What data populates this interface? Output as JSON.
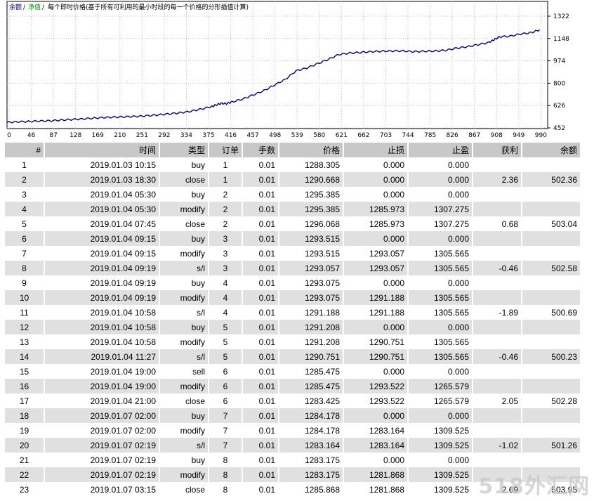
{
  "chart": {
    "legend": {
      "balance_label": "余额",
      "equity_label": "净值",
      "note": "每个即时价格(基于所有可利用的最小时段的每一个价格的分形插值计算)"
    },
    "colors": {
      "balance": "#00008b",
      "equity": "#00a000",
      "grid": "#c0c0c0",
      "axis": "#000000"
    },
    "chart_data": {
      "type": "line",
      "series": [
        {
          "name": "余额",
          "x": [
            0,
            20,
            40,
            60,
            80,
            100,
            120,
            140,
            160,
            180,
            200,
            220,
            240,
            260,
            280,
            300,
            320,
            340,
            360,
            380,
            390,
            400,
            410,
            420,
            440,
            460,
            480,
            500,
            520,
            540,
            560,
            580,
            600,
            620,
            640,
            660,
            680,
            700,
            720,
            740,
            760,
            780,
            800,
            820,
            840,
            860,
            880,
            900,
            910,
            920,
            940,
            960,
            980,
            995
          ],
          "y": [
            496,
            500,
            502,
            505,
            507,
            512,
            516,
            520,
            525,
            530,
            533,
            535,
            538,
            542,
            548,
            555,
            562,
            572,
            588,
            605,
            618,
            630,
            628,
            640,
            660,
            690,
            720,
            760,
            800,
            860,
            880,
            910,
            940,
            975,
            985,
            990,
            995,
            998,
            1000,
            1000,
            995,
            998,
            1000,
            1005,
            1020,
            1030,
            1045,
            1060,
            1080,
            1100,
            1105,
            1120,
            1130,
            1150
          ]
        }
      ],
      "x_ticks": [
        "0",
        "46",
        "87",
        "128",
        "169",
        "210",
        "251",
        "292",
        "334",
        "375",
        "416",
        "457",
        "498",
        "539",
        "580",
        "621",
        "662",
        "703",
        "744",
        "785",
        "826",
        "867",
        "908",
        "949",
        "990"
      ],
      "y_ticks": [
        "1322",
        "1148",
        "974",
        "800",
        "626",
        "452"
      ],
      "xlim": [
        0,
        1010
      ],
      "ylim": [
        452,
        1350
      ]
    }
  },
  "table": {
    "headers": [
      "#",
      "时间",
      "类型",
      "订单",
      "手数",
      "价格",
      "止损",
      "止盈",
      "获利",
      "余额"
    ],
    "rows": [
      [
        "1",
        "2019.01.03 10:15",
        "buy",
        "1",
        "0.01",
        "1288.305",
        "0.000",
        "0.000",
        "",
        ""
      ],
      [
        "2",
        "2019.01.03 18:30",
        "close",
        "1",
        "0.01",
        "1290.668",
        "0.000",
        "0.000",
        "2.36",
        "502.36"
      ],
      [
        "3",
        "2019.01.04 05:30",
        "buy",
        "2",
        "0.01",
        "1295.385",
        "0.000",
        "0.000",
        "",
        ""
      ],
      [
        "4",
        "2019.01.04 05:30",
        "modify",
        "2",
        "0.01",
        "1295.385",
        "1285.973",
        "1307.275",
        "",
        ""
      ],
      [
        "5",
        "2019.01.04 07:45",
        "close",
        "2",
        "0.01",
        "1296.068",
        "1285.973",
        "1307.275",
        "0.68",
        "503.04"
      ],
      [
        "6",
        "2019.01.04 09:15",
        "buy",
        "3",
        "0.01",
        "1293.515",
        "0.000",
        "0.000",
        "",
        ""
      ],
      [
        "7",
        "2019.01.04 09:15",
        "modify",
        "3",
        "0.01",
        "1293.515",
        "1293.057",
        "1305.565",
        "",
        ""
      ],
      [
        "8",
        "2019.01.04 09:19",
        "s/l",
        "3",
        "0.01",
        "1293.057",
        "1293.057",
        "1305.565",
        "-0.46",
        "502.58"
      ],
      [
        "9",
        "2019.01.04 09:19",
        "buy",
        "4",
        "0.01",
        "1293.075",
        "0.000",
        "0.000",
        "",
        ""
      ],
      [
        "10",
        "2019.01.04 09:19",
        "modify",
        "4",
        "0.01",
        "1293.075",
        "1291.188",
        "1305.565",
        "",
        ""
      ],
      [
        "11",
        "2019.01.04 10:58",
        "s/l",
        "4",
        "0.01",
        "1291.188",
        "1291.188",
        "1305.565",
        "-1.89",
        "500.69"
      ],
      [
        "12",
        "2019.01.04 10:58",
        "buy",
        "5",
        "0.01",
        "1291.208",
        "0.000",
        "0.000",
        "",
        ""
      ],
      [
        "13",
        "2019.01.04 10:58",
        "modify",
        "5",
        "0.01",
        "1291.208",
        "1290.751",
        "1305.565",
        "",
        ""
      ],
      [
        "14",
        "2019.01.04 11:27",
        "s/l",
        "5",
        "0.01",
        "1290.751",
        "1290.751",
        "1305.565",
        "-0.46",
        "500.23"
      ],
      [
        "15",
        "2019.01.04 19:00",
        "sell",
        "6",
        "0.01",
        "1285.475",
        "0.000",
        "0.000",
        "",
        ""
      ],
      [
        "16",
        "2019.01.04 19:00",
        "modify",
        "6",
        "0.01",
        "1285.475",
        "1293.522",
        "1265.579",
        "",
        ""
      ],
      [
        "17",
        "2019.01.04 21:00",
        "close",
        "6",
        "0.01",
        "1283.425",
        "1293.522",
        "1265.579",
        "2.05",
        "502.28"
      ],
      [
        "18",
        "2019.01.07 02:00",
        "buy",
        "7",
        "0.01",
        "1284.178",
        "0.000",
        "0.000",
        "",
        ""
      ],
      [
        "19",
        "2019.01.07 02:00",
        "modify",
        "7",
        "0.01",
        "1284.178",
        "1283.164",
        "1309.525",
        "",
        ""
      ],
      [
        "20",
        "2019.01.07 02:19",
        "s/l",
        "7",
        "0.01",
        "1283.164",
        "1283.164",
        "1309.525",
        "-1.02",
        "501.26"
      ],
      [
        "21",
        "2019.01.07 02:19",
        "buy",
        "8",
        "0.01",
        "1283.175",
        "0.000",
        "0.000",
        "",
        ""
      ],
      [
        "22",
        "2019.01.07 02:19",
        "modify",
        "8",
        "0.01",
        "1283.175",
        "1281.868",
        "1309.525",
        "",
        ""
      ],
      [
        "23",
        "2019.01.07 03:15",
        "close",
        "8",
        "0.01",
        "1285.868",
        "1281.868",
        "1309.525",
        "2.69",
        "503.95"
      ]
    ]
  },
  "watermark": "518外汇网"
}
